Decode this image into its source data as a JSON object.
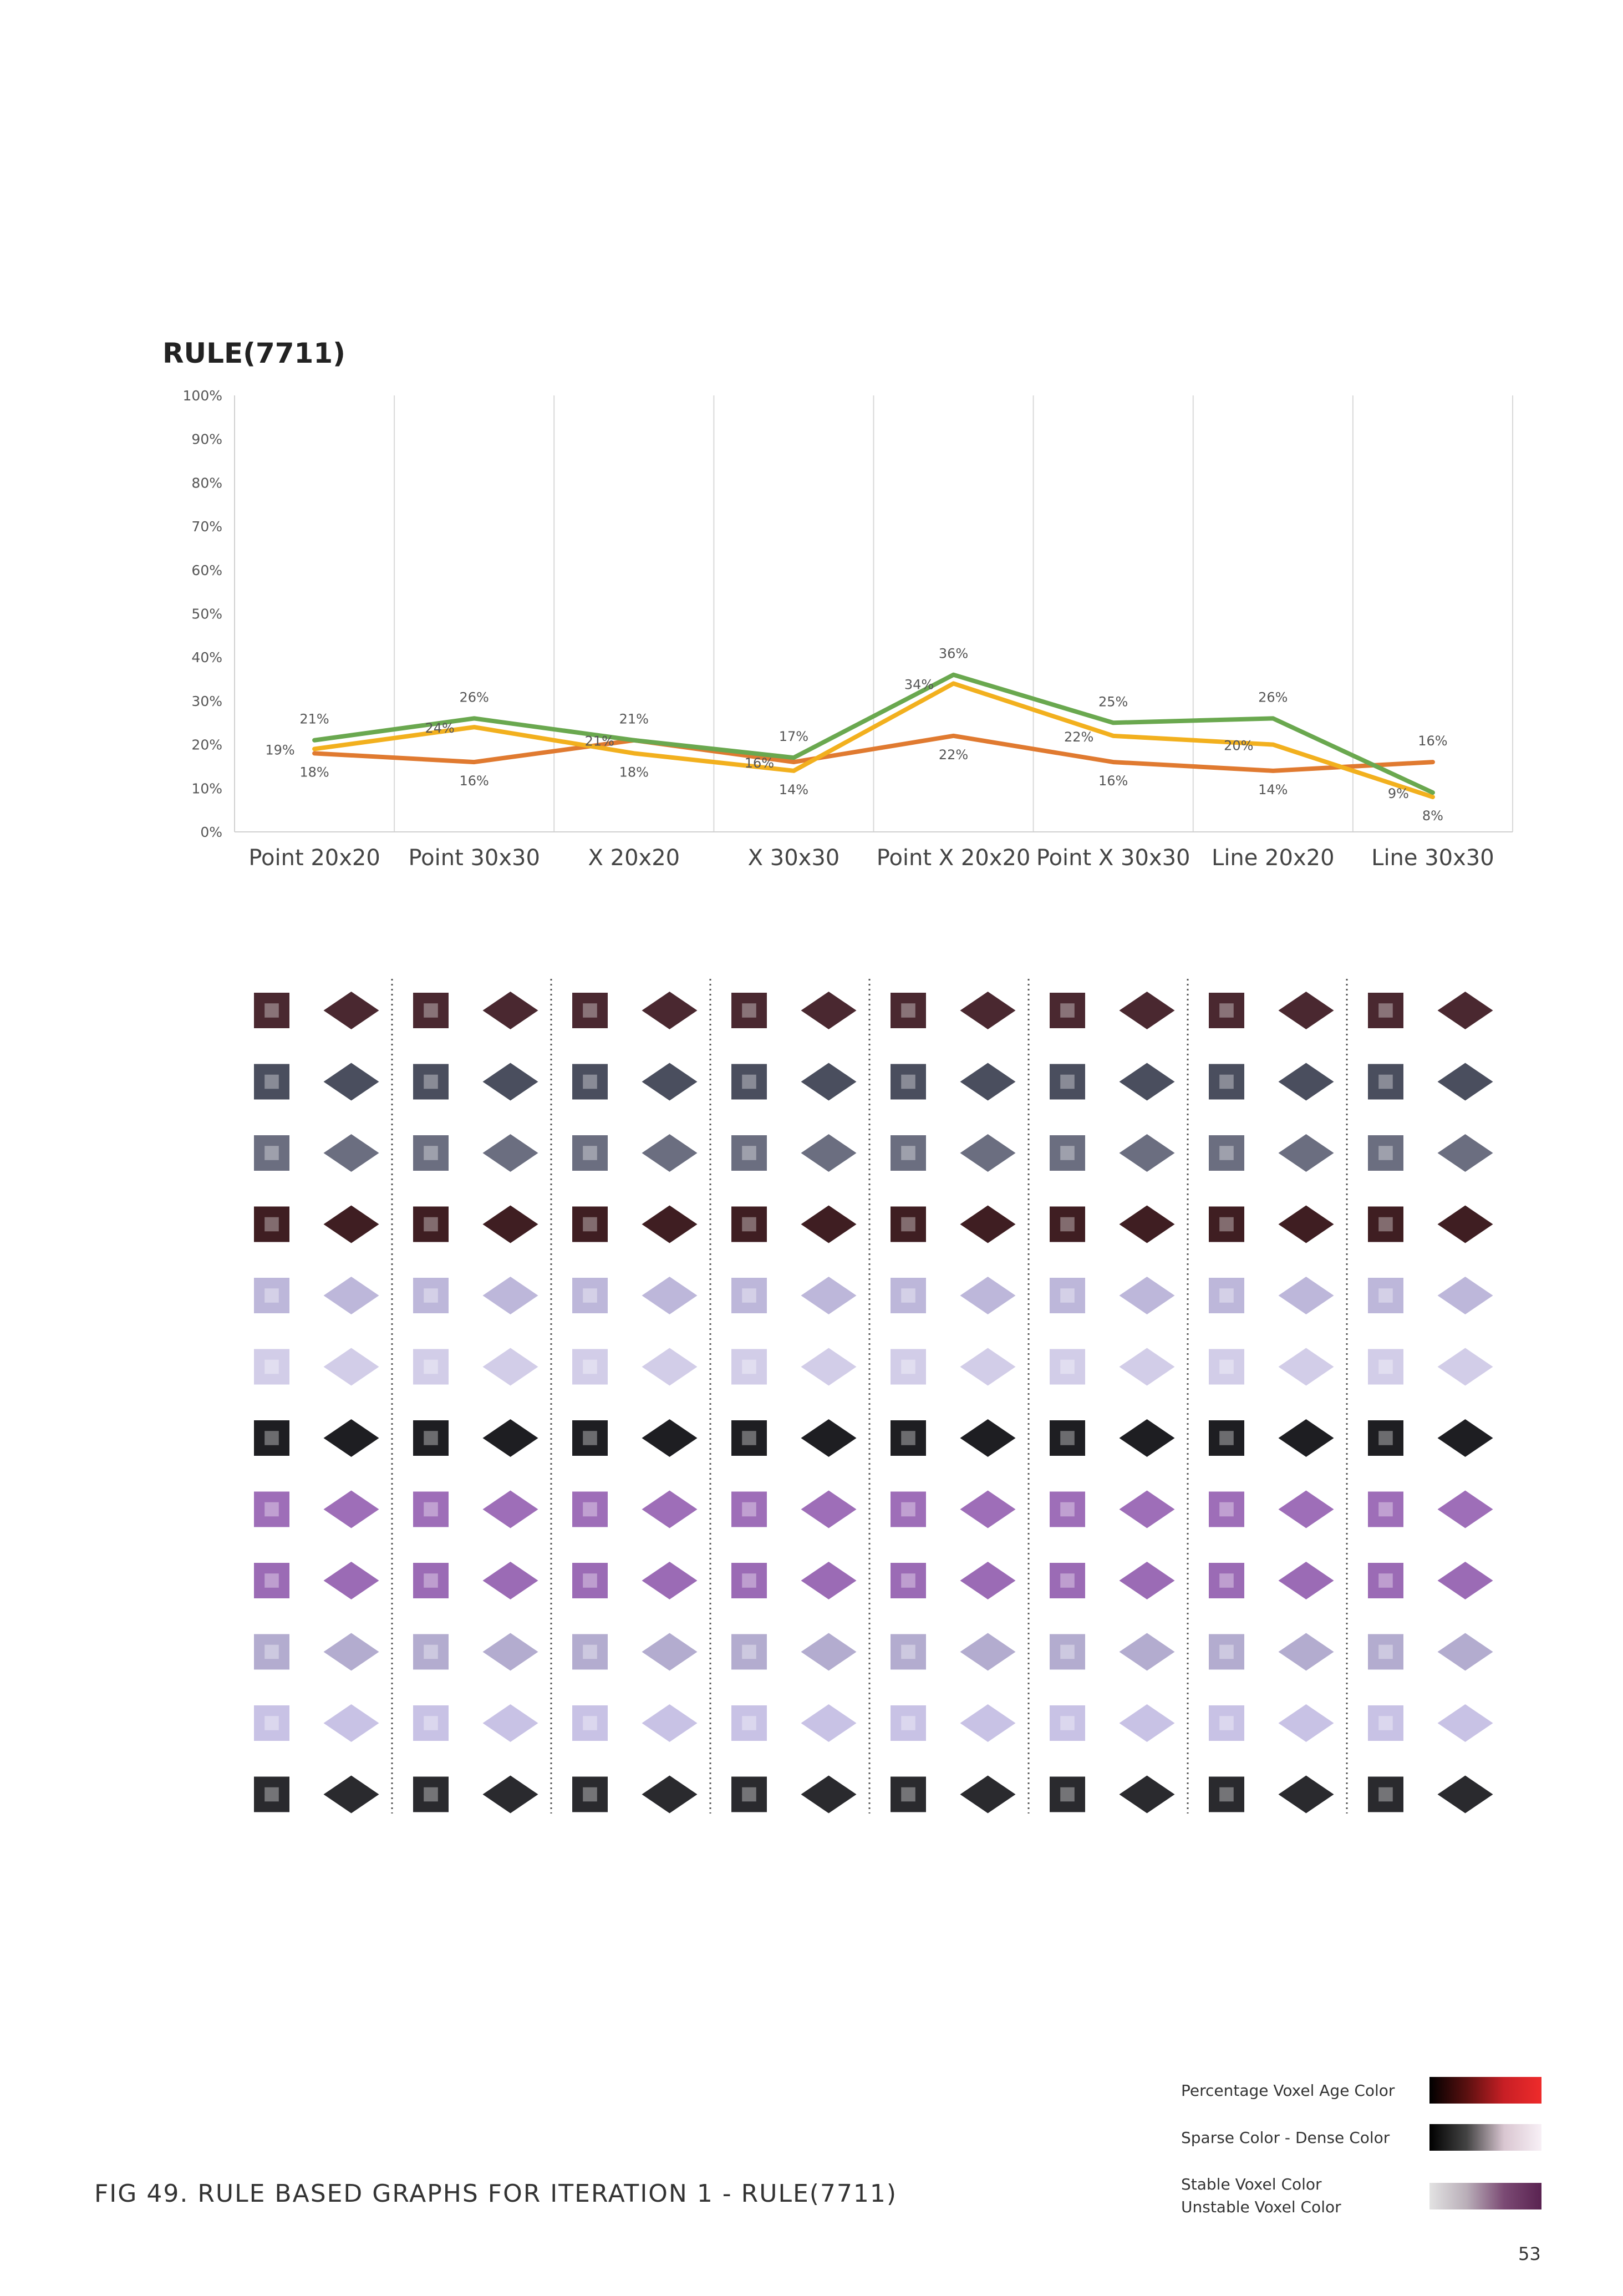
{
  "chart_data": {
    "type": "line",
    "title": "RULE(7711)",
    "categories": [
      "Point 20x20",
      "Point 30x30",
      "X 20x20",
      "X 30x30",
      "Point X 20x20",
      "Point X 30x30",
      "Line 20x20",
      "Line 30x30"
    ],
    "ylim": [
      0,
      100
    ],
    "yticks": [
      "0%",
      "10%",
      "20%",
      "30%",
      "40%",
      "50%",
      "60%",
      "70%",
      "80%",
      "90%",
      "100%"
    ],
    "grid": "vertical",
    "series": [
      {
        "color": "#6aa84f",
        "values": [
          21,
          26,
          21,
          17,
          36,
          25,
          26,
          9
        ],
        "labels": [
          "21%",
          "26%",
          "21%",
          "17%",
          "36%",
          "25%",
          "26%",
          "9%"
        ]
      },
      {
        "color": "#f2b01e",
        "values": [
          19,
          24,
          18,
          14,
          34,
          22,
          20,
          8
        ],
        "labels": [
          "19%",
          "24%",
          "18%",
          "14%",
          "34%",
          "22%",
          "20%",
          "8%"
        ]
      },
      {
        "color": "#e07a30",
        "values": [
          18,
          16,
          21,
          16,
          22,
          16,
          14,
          16
        ],
        "labels": [
          "18%",
          "16%",
          "21%",
          "16%",
          "22%",
          "16%",
          "14%",
          "16%"
        ]
      }
    ]
  },
  "figure": {
    "caption": "FIG 49. RULE BASED GRAPHS FOR ITERATION 1 - RULE(7711)",
    "page_number": "53",
    "thumbnail_rows": [
      {
        "color": "#4a2830"
      },
      {
        "color": "#4a4e5e"
      },
      {
        "color": "#6b6e80"
      },
      {
        "color": "#3f1e22"
      },
      {
        "color": "#a79fce"
      },
      {
        "color": "#c3bce0"
      },
      {
        "color": "#1e1e22"
      },
      {
        "color": "#7d3da0"
      },
      {
        "color": "#7a3a9c"
      },
      {
        "color": "#9a90bf"
      },
      {
        "color": "#b6addc"
      },
      {
        "color": "#2a2a2e"
      }
    ]
  },
  "legend": [
    {
      "label": "Percentage Voxel Age Color",
      "gradient": [
        "#000000",
        "#5a1010",
        "#c81f25",
        "#ee2b2b"
      ]
    },
    {
      "label": "Sparse Color  - Dense Color",
      "gradient": [
        "#000000",
        "#444444",
        "#d9c6d1",
        "#f8f0f6"
      ]
    },
    {
      "label": "Stable Voxel Color",
      "label2": "Unstable Voxel Color",
      "gradient": [
        "#e2e2e2",
        "#b9aeb8",
        "#7b4a74",
        "#5a2351"
      ]
    }
  ]
}
